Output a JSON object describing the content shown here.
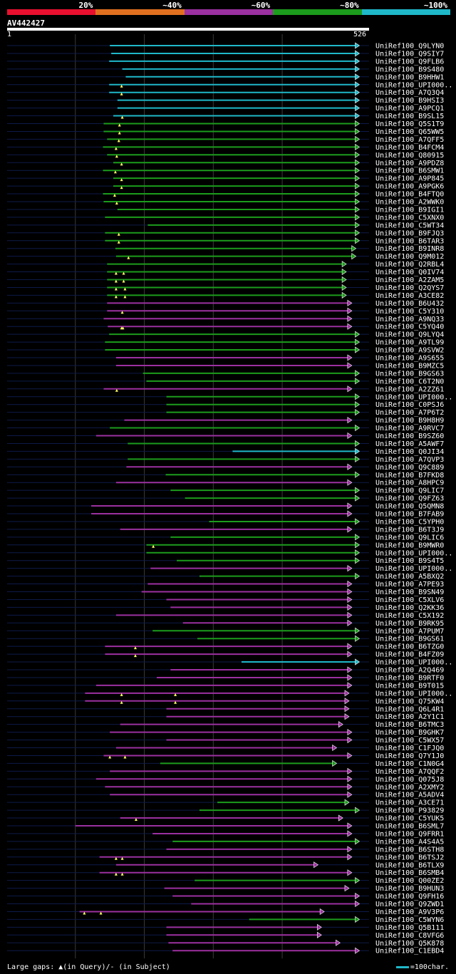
{
  "chart_data": {
    "type": "alignment-overview",
    "query_id": "AV442427",
    "query_length": 526,
    "axis": {
      "start_label": "1",
      "end_label": "526",
      "xlim": [
        1,
        526
      ],
      "gridlines": [
        100,
        200,
        300,
        400
      ]
    },
    "legend": [
      {
        "label": "20%",
        "color": "#e8102e"
      },
      {
        "label": "~40%",
        "color": "#e07020"
      },
      {
        "label": "~60%",
        "color": "#9b30a0"
      },
      {
        "label": "~80%",
        "color": "#1c9c1c"
      },
      {
        "label": "~100%",
        "color": "#1fb8c9"
      }
    ],
    "hits": [
      {
        "label": "UniRef100_Q9LYN0",
        "start": 150,
        "end": 511,
        "color": "#1fb8c9",
        "gaps": []
      },
      {
        "label": "UniRef100_Q9SIY7",
        "start": 152,
        "end": 511,
        "color": "#1fb8c9",
        "gaps": []
      },
      {
        "label": "UniRef100_Q9FLB6",
        "start": 149,
        "end": 511,
        "color": "#1fb8c9",
        "gaps": []
      },
      {
        "label": "UniRef100_B9S480",
        "start": 168,
        "end": 511,
        "color": "#1fb8c9",
        "gaps": []
      },
      {
        "label": "UniRef100_B9HHW1",
        "start": 173,
        "end": 511,
        "color": "#1fb8c9",
        "gaps": []
      },
      {
        "label": "UniRef100_UPI000..",
        "start": 149,
        "end": 511,
        "color": "#1fb8c9",
        "gaps": [
          167
        ]
      },
      {
        "label": "UniRef100_A7Q3Q4",
        "start": 149,
        "end": 511,
        "color": "#1fb8c9",
        "gaps": [
          167
        ]
      },
      {
        "label": "UniRef100_B9HSI3",
        "start": 161,
        "end": 511,
        "color": "#1fb8c9",
        "gaps": []
      },
      {
        "label": "UniRef100_A9PCQ1",
        "start": 161,
        "end": 511,
        "color": "#1fb8c9",
        "gaps": []
      },
      {
        "label": "UniRef100_B9SL15",
        "start": 155,
        "end": 511,
        "color": "#1fb8c9",
        "gaps": [
          168
        ]
      },
      {
        "label": "UniRef100_Q5S1T9",
        "start": 141,
        "end": 511,
        "color": "#1c9c1c",
        "gaps": [
          164
        ]
      },
      {
        "label": "UniRef100_Q65WW5",
        "start": 141,
        "end": 511,
        "color": "#1c9c1c",
        "gaps": [
          164
        ]
      },
      {
        "label": "UniRef100_A7QFF5",
        "start": 146,
        "end": 511,
        "color": "#1c9c1c",
        "gaps": [
          163
        ]
      },
      {
        "label": "UniRef100_B4FCM4",
        "start": 140,
        "end": 511,
        "color": "#1c9c1c",
        "gaps": [
          159
        ]
      },
      {
        "label": "UniRef100_Q80915",
        "start": 146,
        "end": 511,
        "color": "#1c9c1c",
        "gaps": [
          160
        ]
      },
      {
        "label": "UniRef100_A9PDZ8",
        "start": 155,
        "end": 511,
        "color": "#1c9c1c",
        "gaps": [
          167
        ]
      },
      {
        "label": "UniRef100_B6SMW1",
        "start": 140,
        "end": 511,
        "color": "#1c9c1c",
        "gaps": [
          158
        ]
      },
      {
        "label": "UniRef100_A9P845",
        "start": 155,
        "end": 511,
        "color": "#1c9c1c",
        "gaps": [
          167
        ]
      },
      {
        "label": "UniRef100_A9PGK6",
        "start": 155,
        "end": 511,
        "color": "#1c9c1c",
        "gaps": [
          167
        ]
      },
      {
        "label": "UniRef100_B4FTQ0",
        "start": 140,
        "end": 511,
        "color": "#1c9c1c",
        "gaps": [
          157
        ]
      },
      {
        "label": "UniRef100_A2WWK0",
        "start": 141,
        "end": 511,
        "color": "#1c9c1c",
        "gaps": [
          160
        ]
      },
      {
        "label": "UniRef100_B9IGI1",
        "start": 161,
        "end": 511,
        "color": "#1c9c1c",
        "gaps": []
      },
      {
        "label": "UniRef100_C5XNX0",
        "start": 143,
        "end": 511,
        "color": "#1c9c1c",
        "gaps": []
      },
      {
        "label": "UniRef100_C5WT34",
        "start": 205,
        "end": 511,
        "color": "#1c9c1c",
        "gaps": []
      },
      {
        "label": "UniRef100_B9FJQ3",
        "start": 143,
        "end": 511,
        "color": "#1c9c1c",
        "gaps": [
          163
        ]
      },
      {
        "label": "UniRef100_B6TAR3",
        "start": 143,
        "end": 511,
        "color": "#1c9c1c",
        "gaps": [
          163
        ]
      },
      {
        "label": "UniRef100_B9INR8",
        "start": 158,
        "end": 506,
        "color": "#1c9c1c",
        "gaps": []
      },
      {
        "label": "UniRef100_Q9M012",
        "start": 159,
        "end": 506,
        "color": "#1c9c1c",
        "gaps": [
          177
        ]
      },
      {
        "label": "UniRef100_Q2RBL4",
        "start": 146,
        "end": 492,
        "color": "#1c9c1c",
        "gaps": []
      },
      {
        "label": "UniRef100_Q0IV74",
        "start": 146,
        "end": 492,
        "color": "#1c9c1c",
        "gaps": [
          159,
          170
        ]
      },
      {
        "label": "UniRef100_A2ZAM5",
        "start": 146,
        "end": 492,
        "color": "#1c9c1c",
        "gaps": [
          159,
          170
        ]
      },
      {
        "label": "UniRef100_Q2QYS7",
        "start": 146,
        "end": 492,
        "color": "#1c9c1c",
        "gaps": [
          159,
          172
        ]
      },
      {
        "label": "UniRef100_A3CE82",
        "start": 146,
        "end": 492,
        "color": "#1c9c1c",
        "gaps": [
          159,
          172
        ]
      },
      {
        "label": "UniRef100_B6U432",
        "start": 146,
        "end": 500,
        "color": "#9b30a0",
        "gaps": []
      },
      {
        "label": "UniRef100_C5Y310",
        "start": 146,
        "end": 500,
        "color": "#9b30a0",
        "gaps": [
          168
        ]
      },
      {
        "label": "UniRef100_A9NQ33",
        "start": 141,
        "end": 500,
        "color": "#9b30a0",
        "gaps": []
      },
      {
        "label": "UniRef100_C5YQ40",
        "start": 147,
        "end": 500,
        "color": "#9b30a0",
        "gaps": [
          167,
          169
        ]
      },
      {
        "label": "UniRef100_Q9LYQ4",
        "start": 149,
        "end": 511,
        "color": "#1c9c1c",
        "gaps": []
      },
      {
        "label": "UniRef100_A9TL99",
        "start": 143,
        "end": 511,
        "color": "#1c9c1c",
        "gaps": []
      },
      {
        "label": "UniRef100_A9SVW2",
        "start": 143,
        "end": 511,
        "color": "#1c9c1c",
        "gaps": []
      },
      {
        "label": "UniRef100_A9S655",
        "start": 159,
        "end": 500,
        "color": "#9b30a0",
        "gaps": []
      },
      {
        "label": "UniRef100_B9MZC5",
        "start": 159,
        "end": 500,
        "color": "#9b30a0",
        "gaps": []
      },
      {
        "label": "UniRef100_B9GS63",
        "start": 198,
        "end": 511,
        "color": "#1c9c1c",
        "gaps": []
      },
      {
        "label": "UniRef100_C6T2N0",
        "start": 203,
        "end": 511,
        "color": "#1c9c1c",
        "gaps": []
      },
      {
        "label": "UniRef100_A2ZZ61",
        "start": 141,
        "end": 500,
        "color": "#9b30a0",
        "gaps": [
          160
        ]
      },
      {
        "label": "UniRef100_UPI000..",
        "start": 232,
        "end": 511,
        "color": "#1c9c1c",
        "gaps": []
      },
      {
        "label": "UniRef100_C0PSJ6",
        "start": 232,
        "end": 511,
        "color": "#1c9c1c",
        "gaps": []
      },
      {
        "label": "UniRef100_A7P6T2",
        "start": 232,
        "end": 511,
        "color": "#1c9c1c",
        "gaps": []
      },
      {
        "label": "UniRef100_B9H8H9",
        "start": 171,
        "end": 500,
        "color": "#9b30a0",
        "gaps": []
      },
      {
        "label": "UniRef100_A9RVC7",
        "start": 150,
        "end": 511,
        "color": "#1c9c1c",
        "gaps": []
      },
      {
        "label": "UniRef100_B9SZ60",
        "start": 130,
        "end": 500,
        "color": "#9b30a0",
        "gaps": []
      },
      {
        "label": "UniRef100_A5AWF7",
        "start": 176,
        "end": 511,
        "color": "#1c9c1c",
        "gaps": []
      },
      {
        "label": "UniRef100_Q0JI34",
        "start": 328,
        "end": 511,
        "color": "#1fb8c9",
        "gaps": []
      },
      {
        "label": "UniRef100_A7QVP3",
        "start": 176,
        "end": 511,
        "color": "#1c9c1c",
        "gaps": []
      },
      {
        "label": "UniRef100_Q9C889",
        "start": 174,
        "end": 500,
        "color": "#9b30a0",
        "gaps": []
      },
      {
        "label": "UniRef100_B7FKD8",
        "start": 231,
        "end": 511,
        "color": "#1c9c1c",
        "gaps": []
      },
      {
        "label": "UniRef100_A8HPC9",
        "start": 159,
        "end": 500,
        "color": "#9b30a0",
        "gaps": []
      },
      {
        "label": "UniRef100_Q9LIC7",
        "start": 238,
        "end": 511,
        "color": "#1c9c1c",
        "gaps": []
      },
      {
        "label": "UniRef100_Q9FZ63",
        "start": 259,
        "end": 511,
        "color": "#1c9c1c",
        "gaps": []
      },
      {
        "label": "UniRef100_Q5QMN8",
        "start": 123,
        "end": 500,
        "color": "#9b30a0",
        "gaps": []
      },
      {
        "label": "UniRef100_B7FAB9",
        "start": 123,
        "end": 500,
        "color": "#9b30a0",
        "gaps": []
      },
      {
        "label": "UniRef100_C5YPH0",
        "start": 294,
        "end": 511,
        "color": "#1c9c1c",
        "gaps": []
      },
      {
        "label": "UniRef100_B6T3J9",
        "start": 165,
        "end": 500,
        "color": "#9b30a0",
        "gaps": []
      },
      {
        "label": "UniRef100_Q9LIC6",
        "start": 238,
        "end": 511,
        "color": "#1c9c1c",
        "gaps": []
      },
      {
        "label": "UniRef100_B9MWR0",
        "start": 203,
        "end": 511,
        "color": "#1c9c1c",
        "gaps": [
          213
        ]
      },
      {
        "label": "UniRef100_UPI000..",
        "start": 203,
        "end": 511,
        "color": "#1c9c1c",
        "gaps": []
      },
      {
        "label": "UniRef100_B9S4T5",
        "start": 247,
        "end": 511,
        "color": "#1c9c1c",
        "gaps": []
      },
      {
        "label": "UniRef100_UPI000..",
        "start": 209,
        "end": 500,
        "color": "#9b30a0",
        "gaps": []
      },
      {
        "label": "UniRef100_A5BXQ2",
        "start": 280,
        "end": 511,
        "color": "#1c9c1c",
        "gaps": []
      },
      {
        "label": "UniRef100_A7PE93",
        "start": 205,
        "end": 500,
        "color": "#9b30a0",
        "gaps": []
      },
      {
        "label": "UniRef100_B9SN49",
        "start": 196,
        "end": 500,
        "color": "#9b30a0",
        "gaps": []
      },
      {
        "label": "UniRef100_C5XLV6",
        "start": 232,
        "end": 500,
        "color": "#9b30a0",
        "gaps": []
      },
      {
        "label": "UniRef100_Q2KK36",
        "start": 238,
        "end": 500,
        "color": "#9b30a0",
        "gaps": []
      },
      {
        "label": "UniRef100_C5X192",
        "start": 159,
        "end": 500,
        "color": "#9b30a0",
        "gaps": []
      },
      {
        "label": "UniRef100_B9RK95",
        "start": 256,
        "end": 500,
        "color": "#9b30a0",
        "gaps": []
      },
      {
        "label": "UniRef100_A7PUM7",
        "start": 212,
        "end": 511,
        "color": "#1c9c1c",
        "gaps": []
      },
      {
        "label": "UniRef100_B9GS61",
        "start": 277,
        "end": 511,
        "color": "#1c9c1c",
        "gaps": []
      },
      {
        "label": "UniRef100_B6TZG0",
        "start": 143,
        "end": 500,
        "color": "#9b30a0",
        "gaps": [
          187
        ]
      },
      {
        "label": "UniRef100_B4FZ09",
        "start": 143,
        "end": 500,
        "color": "#9b30a0",
        "gaps": [
          187
        ]
      },
      {
        "label": "UniRef100_UPI000..",
        "start": 341,
        "end": 511,
        "color": "#1fb8c9",
        "gaps": []
      },
      {
        "label": "UniRef100_A2Q469",
        "start": 238,
        "end": 500,
        "color": "#9b30a0",
        "gaps": []
      },
      {
        "label": "UniRef100_B9RTF0",
        "start": 218,
        "end": 500,
        "color": "#9b30a0",
        "gaps": []
      },
      {
        "label": "UniRef100_B9T015",
        "start": 130,
        "end": 500,
        "color": "#9b30a0",
        "gaps": []
      },
      {
        "label": "UniRef100_UPI000..",
        "start": 114,
        "end": 496,
        "color": "#9b30a0",
        "gaps": [
          167,
          245
        ]
      },
      {
        "label": "UniRef100_Q75KW4",
        "start": 114,
        "end": 496,
        "color": "#9b30a0",
        "gaps": [
          167,
          245
        ]
      },
      {
        "label": "UniRef100_Q6L4R1",
        "start": 232,
        "end": 496,
        "color": "#9b30a0",
        "gaps": []
      },
      {
        "label": "UniRef100_A2Y1C1",
        "start": 232,
        "end": 496,
        "color": "#9b30a0",
        "gaps": []
      },
      {
        "label": "UniRef100_B6TMC3",
        "start": 165,
        "end": 487,
        "color": "#9b30a0",
        "gaps": []
      },
      {
        "label": "UniRef100_B9GHK7",
        "start": 150,
        "end": 500,
        "color": "#9b30a0",
        "gaps": []
      },
      {
        "label": "UniRef100_C5WX57",
        "start": 232,
        "end": 500,
        "color": "#9b30a0",
        "gaps": []
      },
      {
        "label": "UniRef100_C1FJQ0",
        "start": 159,
        "end": 478,
        "color": "#9b30a0",
        "gaps": []
      },
      {
        "label": "UniRef100_Q7Y1J0",
        "start": 141,
        "end": 500,
        "color": "#9b30a0",
        "gaps": [
          150,
          172
        ]
      },
      {
        "label": "UniRef100_C1N0G4",
        "start": 223,
        "end": 478,
        "color": "#1c9c1c",
        "gaps": []
      },
      {
        "label": "UniRef100_A7QQF2",
        "start": 150,
        "end": 500,
        "color": "#9b30a0",
        "gaps": []
      },
      {
        "label": "UniRef100_Q075J8",
        "start": 130,
        "end": 500,
        "color": "#9b30a0",
        "gaps": []
      },
      {
        "label": "UniRef100_A2XMY2",
        "start": 143,
        "end": 500,
        "color": "#9b30a0",
        "gaps": []
      },
      {
        "label": "UniRef100_A5ADV4",
        "start": 150,
        "end": 500,
        "color": "#9b30a0",
        "gaps": []
      },
      {
        "label": "UniRef100_A3CE71",
        "start": 306,
        "end": 496,
        "color": "#1c9c1c",
        "gaps": []
      },
      {
        "label": "UniRef100_P93829",
        "start": 280,
        "end": 511,
        "color": "#1c9c1c",
        "gaps": []
      },
      {
        "label": "UniRef100_C5YUK5",
        "start": 165,
        "end": 487,
        "color": "#9b30a0",
        "gaps": [
          188
        ]
      },
      {
        "label": "UniRef100_B6SML7",
        "start": 100,
        "end": 500,
        "color": "#9b30a0",
        "gaps": []
      },
      {
        "label": "UniRef100_Q9FRR1",
        "start": 212,
        "end": 500,
        "color": "#9b30a0",
        "gaps": []
      },
      {
        "label": "UniRef100_A4S4A5",
        "start": 241,
        "end": 511,
        "color": "#1c9c1c",
        "gaps": []
      },
      {
        "label": "UniRef100_B6STH8",
        "start": 232,
        "end": 500,
        "color": "#9b30a0",
        "gaps": []
      },
      {
        "label": "UniRef100_B6TSJ2",
        "start": 135,
        "end": 500,
        "color": "#9b30a0",
        "gaps": [
          159,
          168
        ]
      },
      {
        "label": "UniRef100_B6TLX9",
        "start": 159,
        "end": 451,
        "color": "#9b30a0",
        "gaps": []
      },
      {
        "label": "UniRef100_B6SMB4",
        "start": 135,
        "end": 500,
        "color": "#9b30a0",
        "gaps": [
          159,
          168
        ]
      },
      {
        "label": "UniRef100_Q00ZE2",
        "start": 273,
        "end": 511,
        "color": "#1c9c1c",
        "gaps": []
      },
      {
        "label": "UniRef100_B9HUN3",
        "start": 229,
        "end": 496,
        "color": "#9b30a0",
        "gaps": []
      },
      {
        "label": "UniRef100_Q9FH16",
        "start": 241,
        "end": 511,
        "color": "#9b30a0",
        "gaps": []
      },
      {
        "label": "UniRef100_Q9ZWD1",
        "start": 268,
        "end": 511,
        "color": "#9b30a0",
        "gaps": []
      },
      {
        "label": "UniRef100_A9V3P6",
        "start": 106,
        "end": 460,
        "color": "#9b30a0",
        "gaps": [
          113,
          137
        ]
      },
      {
        "label": "UniRef100_C5WYN6",
        "start": 352,
        "end": 511,
        "color": "#1c9c1c",
        "gaps": []
      },
      {
        "label": "UniRef100_Q5B111",
        "start": 232,
        "end": 456,
        "color": "#9b30a0",
        "gaps": []
      },
      {
        "label": "UniRef100_C8VFG6",
        "start": 232,
        "end": 456,
        "color": "#9b30a0",
        "gaps": []
      },
      {
        "label": "UniRef100_Q5K878",
        "start": 235,
        "end": 483,
        "color": "#9b30a0",
        "gaps": []
      },
      {
        "label": "UniRef100_C1EBD4",
        "start": 241,
        "end": 511,
        "color": "#9b30a0",
        "gaps": []
      }
    ],
    "footer": {
      "gaps_note": "Large gaps: ▲(in Query)/- (in Subject)",
      "scale_note": "=100char."
    }
  }
}
